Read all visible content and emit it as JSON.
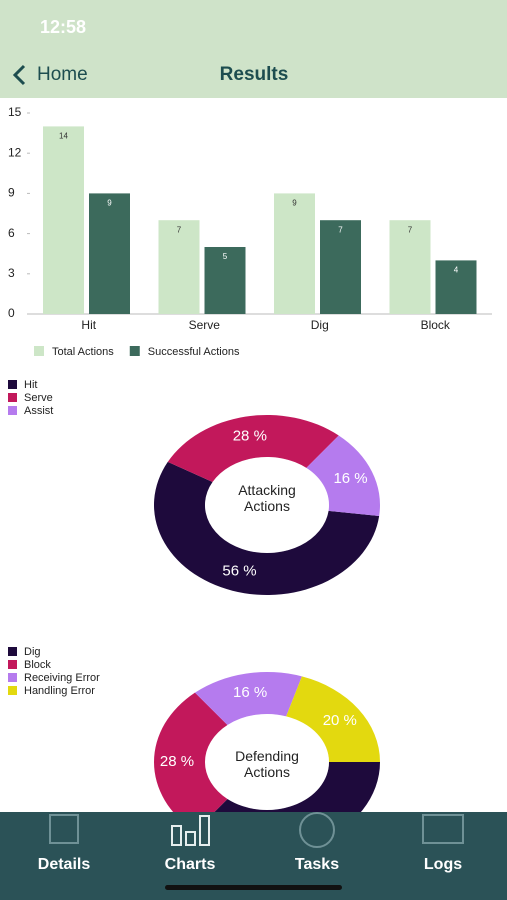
{
  "status_bar": {
    "time": "12:58"
  },
  "nav": {
    "back": "Home",
    "title": "Results"
  },
  "chart_data": [
    {
      "type": "bar",
      "categories": [
        "Hit",
        "Serve",
        "Dig",
        "Block"
      ],
      "series": [
        {
          "name": "Total Actions",
          "color": "#cde6c7",
          "values": [
            14,
            7,
            9,
            7
          ]
        },
        {
          "name": "Successful Actions",
          "color": "#3c6a5c",
          "values": [
            9,
            5,
            7,
            4
          ]
        }
      ],
      "ylim": [
        0,
        15
      ],
      "yticks": [
        0,
        3,
        6,
        9,
        12,
        15
      ]
    },
    {
      "type": "pie",
      "center_label": "Attacking Actions",
      "categories": [
        "Hit",
        "Serve",
        "Assist"
      ],
      "values": [
        56,
        28,
        16
      ],
      "value_labels": [
        "56 %",
        "28 %",
        "16 %"
      ],
      "colors": [
        "#1e0a3c",
        "#c2185b",
        "#b57bee"
      ]
    },
    {
      "type": "pie",
      "center_label": "Defending Actions",
      "categories": [
        "Dig",
        "Block",
        "Receiving Error",
        "Handling Error"
      ],
      "values": [
        36,
        28,
        16,
        20
      ],
      "value_labels": [
        null,
        "28 %",
        "16 %",
        "20 %"
      ],
      "colors": [
        "#1e0a3c",
        "#c2185b",
        "#b57bee",
        "#e3d90f"
      ]
    }
  ],
  "tabs": [
    "Details",
    "Charts",
    "Tasks",
    "Logs"
  ]
}
